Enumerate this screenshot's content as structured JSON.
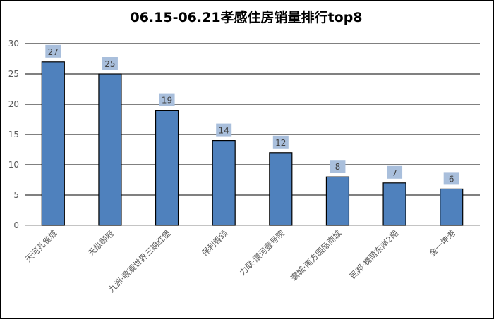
{
  "chart_data": {
    "type": "bar",
    "title": "06.15-06.21孝感住房销量排行top8",
    "categories": [
      "天河孔雀城",
      "天纵御府",
      "九洲·鼎观世界三期红堡",
      "保利香颂",
      "力联·澴河壹号院",
      "寰城·南方国际商城",
      "民邦·槐荫东岸2期",
      "金一坤港"
    ],
    "values": [
      27,
      25,
      19,
      14,
      12,
      8,
      7,
      6
    ],
    "ylim": [
      0,
      30
    ],
    "yticks": [
      0,
      5,
      10,
      15,
      20,
      25,
      30
    ],
    "grid": true,
    "legend": "none",
    "bar_color": "#4f81bd",
    "label_bg": "#a9bfdc"
  }
}
